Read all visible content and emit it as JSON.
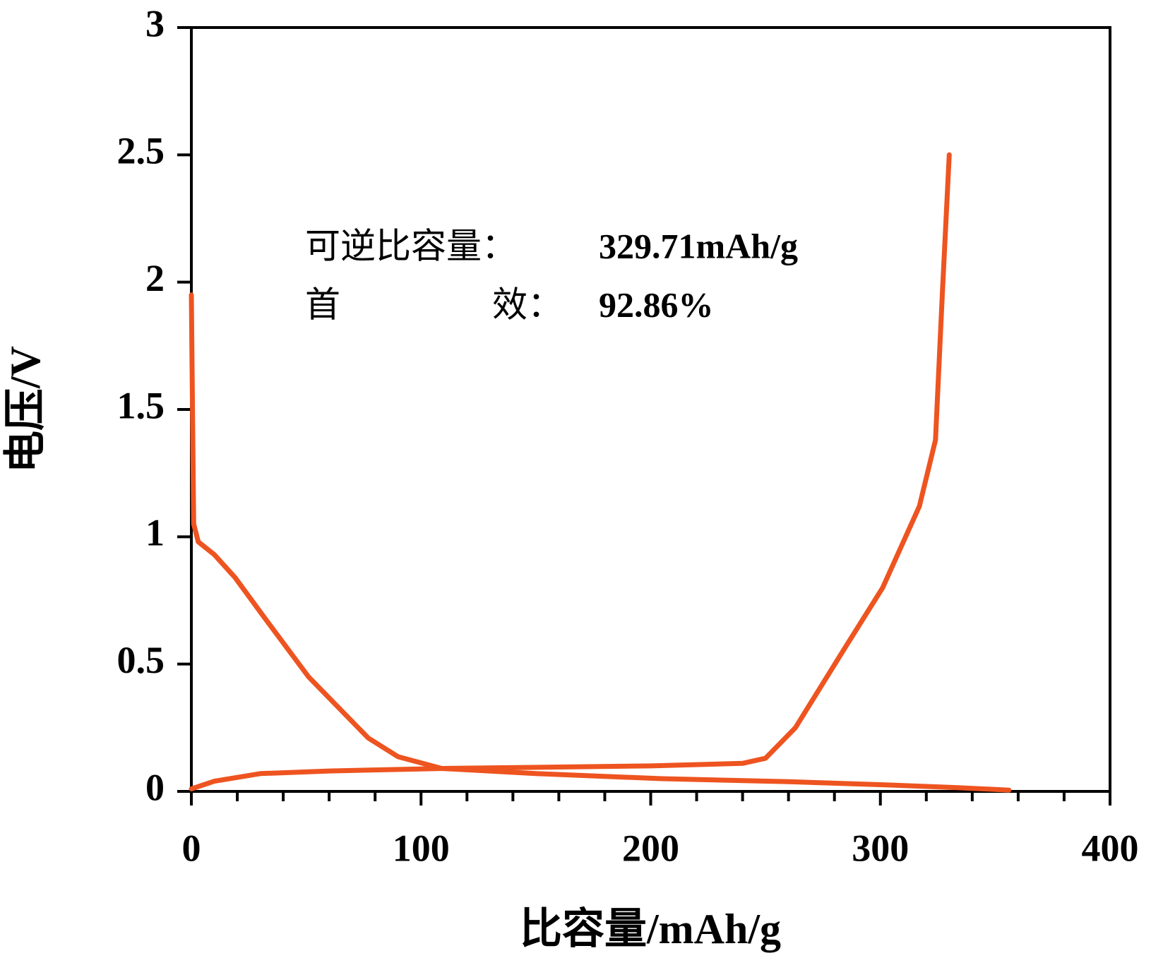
{
  "chart_data": {
    "type": "line",
    "xlabel": "比容量/mAh/g",
    "ylabel": "电压/V",
    "annotations": [
      "可逆比容量：",
      "329.71mAh/g",
      "首",
      "效：",
      "92.86%"
    ],
    "xlim": [
      0,
      400
    ],
    "xticks": [
      0,
      100,
      200,
      300,
      400
    ],
    "xticks_minor": [
      20,
      40,
      60,
      80,
      120,
      140,
      160,
      180,
      220,
      240,
      260,
      280,
      320,
      340,
      360,
      380
    ],
    "ylim": [
      0,
      3
    ],
    "yticks": [
      0,
      0.5,
      1,
      1.5,
      2,
      2.5,
      3
    ],
    "grid": false,
    "series": [
      {
        "color": "#ee5420",
        "x": [
          0,
          0.5,
          1,
          3,
          10,
          19,
          32,
          51,
          77,
          90,
          109,
          150,
          205,
          260,
          301,
          333,
          356
        ],
        "values": [
          1.95,
          1.5,
          1.05,
          0.98,
          0.93,
          0.84,
          0.68,
          0.45,
          0.21,
          0.136,
          0.09,
          0.07,
          0.05,
          0.038,
          0.026,
          0.015,
          0.005
        ]
      },
      {
        "color": "#ee5420",
        "x": [
          0,
          10,
          30,
          60,
          110,
          200,
          240,
          250,
          263,
          285,
          301,
          317,
          324,
          327,
          330
        ],
        "values": [
          0.01,
          0.04,
          0.07,
          0.08,
          0.09,
          0.1,
          0.11,
          0.13,
          0.25,
          0.57,
          0.8,
          1.12,
          1.38,
          1.96,
          2.5
        ]
      }
    ]
  }
}
